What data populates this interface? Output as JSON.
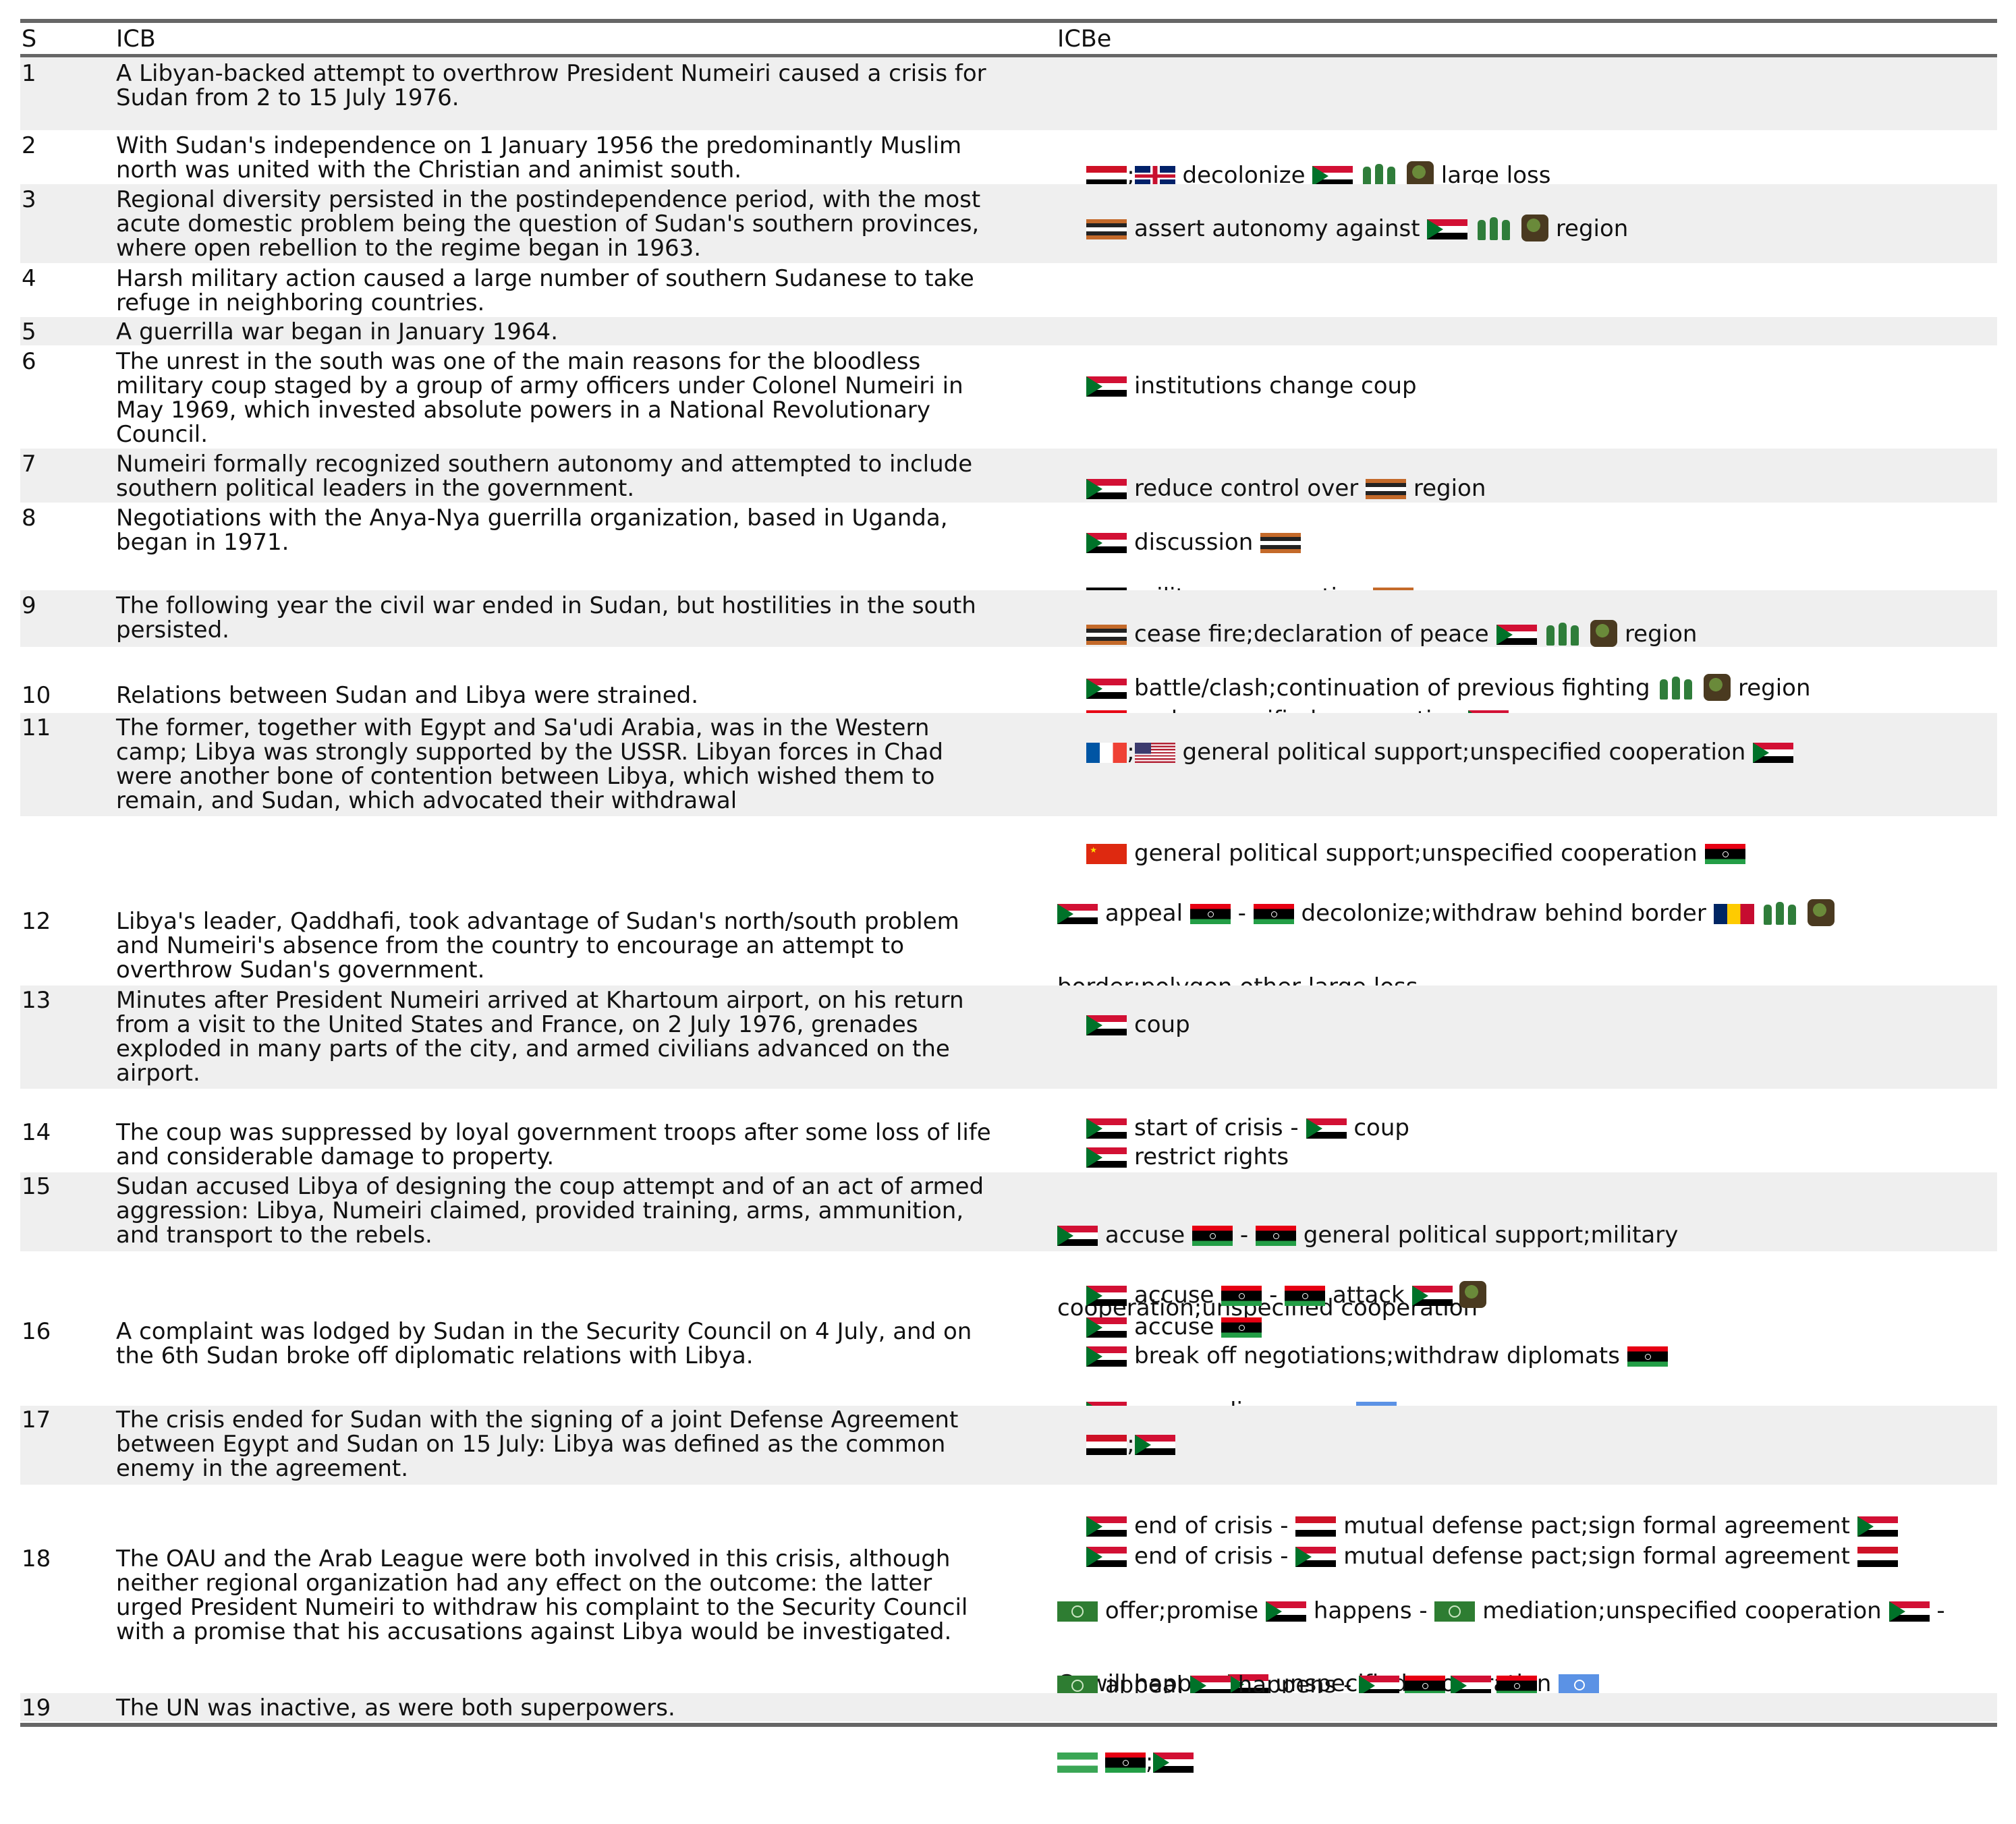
{
  "header": {
    "s": "S",
    "icb": "ICB",
    "icbe": "ICBe"
  },
  "icb": {
    "r1": [
      "A Libyan-backed attempt to overthrow President Numeiri caused a crisis for",
      "Sudan from 2 to 15 July 1976."
    ],
    "r2": [
      "With Sudan's independence on 1 January 1956 the predominantly Muslim",
      "north was united with the Christian and animist south."
    ],
    "r3": [
      "Regional diversity persisted in the postindependence period, with the most",
      "acute domestic problem being the question of Sudan's southern provinces,",
      "where open rebellion to the regime began in 1963."
    ],
    "r4": [
      "Harsh military action caused a large number of southern Sudanese to take",
      "refuge in neighboring countries."
    ],
    "r5": [
      "A guerrilla war began in January 1964."
    ],
    "r6": [
      "The unrest in the south was one of the main reasons for the bloodless",
      "military coup staged by a group of army officers under Colonel Numeiri in",
      "May 1969, which invested absolute powers in a National Revolutionary",
      "Council."
    ],
    "r7": [
      "Numeiri formally recognized southern autonomy and attempted to include",
      "southern political leaders in the government."
    ],
    "r8": [
      "Negotiations with the Anya-Nya guerrilla organization, based in Uganda,",
      "began in 1971."
    ],
    "r9": [
      "The following year the civil war ended in Sudan, but hostilities in the south",
      "persisted."
    ],
    "r10": [
      "Relations between Sudan and Libya were strained."
    ],
    "r11": [
      "The former, together with Egypt and Sa'udi Arabia, was in the Western",
      "camp; Libya was strongly supported by the USSR. Libyan forces in Chad",
      "were another bone of contention between Libya, which wished them to",
      "remain, and Sudan, which advocated their withdrawal"
    ],
    "r12": [
      "Libya's leader, Qaddhafi, took advantage of Sudan's north/south problem",
      "and Numeiri's absence from the country to encourage an attempt to",
      "overthrow Sudan's government."
    ],
    "r13": [
      "Minutes after President Numeiri arrived at Khartoum airport, on his return",
      "from a visit to the United States and France, on 2 July 1976, grenades",
      "exploded in many parts of the city, and armed civilians advanced on the",
      "airport."
    ],
    "r14": [
      "The coup was suppressed by loyal government troops after some loss of life",
      "and considerable damage to property."
    ],
    "r15": [
      "Sudan accused Libya of designing the coup attempt and of an act of armed",
      "aggression: Libya, Numeiri claimed, provided training, arms, ammunition,",
      "and transport to the rebels."
    ],
    "r16": [
      "A complaint was lodged by Sudan in the Security Council on 4 July, and on",
      "the 6th Sudan broke off diplomatic relations with Libya."
    ],
    "r17": [
      "The crisis ended for Sudan with the signing of a joint Defense Agreement",
      "between Egypt and Sudan on 15 July: Libya was defined as the common",
      "enemy in the agreement."
    ],
    "r18": [
      "The OAU and the Arab League were both involved in this crisis, although",
      "neither regional organization had any effect on the outcome: the latter",
      "urged President Numeiri to withdraw his complaint to the Security Council",
      "with a promise that his accusations against Libya would be investigated."
    ],
    "r19": [
      "The UN was inactive, as were both superpowers."
    ]
  },
  "icbe": {
    "e2": [
      "decolonize",
      "large loss"
    ],
    "e3": [
      "assert autonomy against",
      "region"
    ],
    "e6": [
      "institutions change coup"
    ],
    "e7": [
      "reduce control over",
      "region"
    ],
    "e8a": [
      "discussion"
    ],
    "e8b": [
      "military cooperation"
    ],
    "e9a": [
      "cease fire;declaration of peace",
      "region"
    ],
    "e9b": [
      "battle/clash;continuation of previous fighting",
      "region"
    ],
    "e10": [
      "end unspecified cooperation"
    ],
    "e11a": [
      "general political support;unspecified cooperation"
    ],
    "e11b": [
      "general political support;unspecified cooperation"
    ],
    "e11c": [
      "appeal",
      "-",
      "decolonize;withdraw behind border",
      "border;polygon other large loss"
    ],
    "e13": [
      "coup"
    ],
    "e13b": [
      "start of crisis -",
      "coup"
    ],
    "e14": [
      "restrict rights"
    ],
    "e15a": [
      "accuse",
      "-",
      "general political support;military",
      "cooperation;unspecified cooperation"
    ],
    "e15b": [
      "accuse",
      "-",
      "attack"
    ],
    "e15c": [
      "accuse"
    ],
    "e16a": [
      "break off negotiations;withdraw diplomats"
    ],
    "e16b": [
      "accuse;disapprove"
    ],
    "e18a": [
      "end of crisis -",
      "mutual defense pact;sign formal agreement"
    ],
    "e18b": [
      "end of crisis -",
      "mutual defense pact;sign formal agreement"
    ],
    "e18c": [
      "offer;promise",
      "happens -",
      "mediation;unspecified cooperation",
      "-",
      "C- will happen",
      "unspecified cooperation"
    ],
    "e18d": [
      "appeal",
      "happens -"
    ]
  },
  "icons": [
    "sudan-flag-icon",
    "uk-flag-icon",
    "egypt-flag-icon",
    "libya-flag-icon",
    "uganda-flag-icon",
    "france-flag-icon",
    "usa-flag-icon",
    "china-flag-icon",
    "chad-flag-icon",
    "un-flag-icon",
    "arab-league-flag-icon",
    "anya-nya-flag-icon",
    "soldiers-icon",
    "globe-icon"
  ],
  "colors": {
    "rule": "#666666",
    "shade": "#efefef",
    "sudan_red": "#d21034",
    "sudan_green": "#007229",
    "un_blue": "#5b92e5",
    "arab_league_green": "#2e7d32"
  }
}
